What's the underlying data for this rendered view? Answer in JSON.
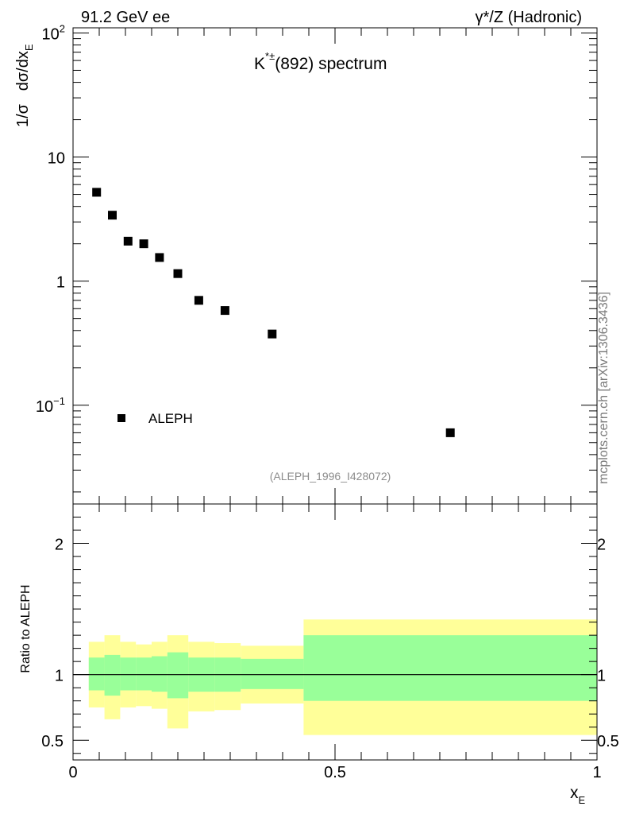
{
  "header": {
    "left": "91.2 GeV ee",
    "right": "γ*/Z (Hadronic)"
  },
  "side_label": "mcplots.cern.ch [arXiv:1306.3436]",
  "chart_data": [
    {
      "type": "scatter",
      "panel": "main",
      "title_parts": {
        "base": "K",
        "superscript": "*±",
        "rest": "(892) spectrum"
      },
      "ylabel_parts": {
        "prefix": "1/σ   dσ/dx",
        "subscript": "E"
      },
      "yscale": "log",
      "xlim": [
        0,
        1
      ],
      "ylim": [
        0.016,
        110
      ],
      "yticks": [
        {
          "value": 100,
          "base": "10",
          "exp": "2"
        },
        {
          "value": 10,
          "label": "10"
        },
        {
          "value": 1,
          "label": "1"
        },
        {
          "value": 0.1,
          "base": "10",
          "exp": "−1"
        }
      ],
      "series": [
        {
          "name": "ALEPH",
          "marker": "square",
          "color": "#000000",
          "x": [
            0.045,
            0.075,
            0.105,
            0.135,
            0.165,
            0.2,
            0.24,
            0.29,
            0.38,
            0.72
          ],
          "y": [
            5.2,
            3.4,
            2.1,
            2.0,
            1.55,
            1.15,
            0.7,
            0.58,
            0.375,
            0.06
          ]
        }
      ],
      "legend": {
        "label": "ALEPH",
        "position": "bottom-left"
      },
      "annotation": "(ALEPH_1996_I428072)"
    },
    {
      "type": "area",
      "panel": "ratio",
      "ylabel": "Ratio to ALEPH",
      "xlabel_parts": {
        "base": "x",
        "subscript": "E"
      },
      "xlim": [
        0,
        1
      ],
      "ylim": [
        0.35,
        2.3
      ],
      "xticks": [
        {
          "value": 0,
          "label": "0"
        },
        {
          "value": 0.5,
          "label": "0.5"
        },
        {
          "value": 1,
          "label": "1"
        }
      ],
      "yticks": [
        {
          "value": 0.5,
          "label": "0.5"
        },
        {
          "value": 1,
          "label": "1"
        },
        {
          "value": 2,
          "label": "2"
        }
      ],
      "reference_line": 1,
      "bins": {
        "edges": [
          0.03,
          0.06,
          0.09,
          0.12,
          0.15,
          0.18,
          0.22,
          0.27,
          0.32,
          0.44,
          1.0
        ],
        "inner_low": [
          0.88,
          0.84,
          0.88,
          0.88,
          0.87,
          0.82,
          0.87,
          0.87,
          0.89,
          0.8
        ],
        "inner_high": [
          1.13,
          1.15,
          1.13,
          1.13,
          1.14,
          1.17,
          1.13,
          1.13,
          1.12,
          1.3
        ],
        "outer_low": [
          0.75,
          0.66,
          0.75,
          0.76,
          0.74,
          0.59,
          0.72,
          0.73,
          0.78,
          0.54
        ],
        "outer_high": [
          1.25,
          1.3,
          1.25,
          1.23,
          1.25,
          1.3,
          1.25,
          1.24,
          1.22,
          1.42
        ]
      },
      "colors": {
        "inner": "#99ff99",
        "outer": "#ffff99"
      }
    }
  ]
}
